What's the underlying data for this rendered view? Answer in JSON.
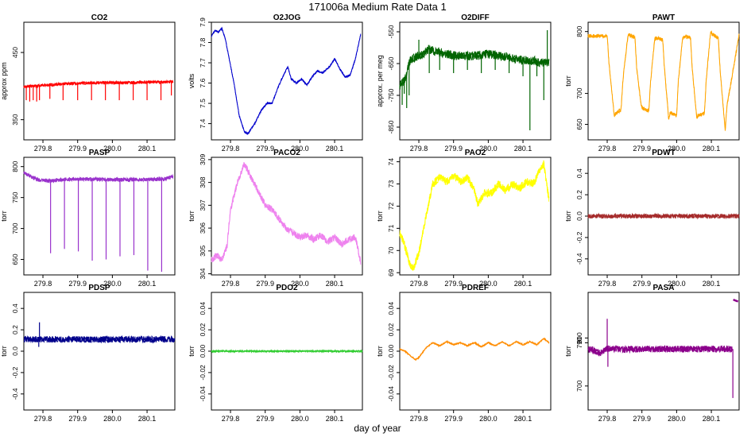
{
  "figure": {
    "title": "171006a   Medium Rate Data 1",
    "xlabel": "day of year"
  },
  "chart_data": [
    {
      "type": "line",
      "title": "CO2",
      "ylabel": "approx ppm",
      "color": "#ff0000",
      "xlim": [
        279.745,
        280.18
      ],
      "ylim": [
        320,
        495
      ],
      "xticks": [
        "279.8",
        "279.9",
        "280.0",
        "280.1"
      ],
      "yticks": [
        350,
        450
      ],
      "x": [
        279.745,
        279.8,
        279.85,
        279.9,
        279.95,
        280.0,
        280.05,
        280.1,
        280.15,
        280.175
      ],
      "y": [
        399,
        401,
        403,
        404,
        405,
        405,
        405,
        406,
        406,
        407
      ],
      "noise": 2,
      "spikes": [
        {
          "x": 279.752,
          "y": 379
        },
        {
          "x": 279.762,
          "y": 377
        },
        {
          "x": 279.772,
          "y": 379
        },
        {
          "x": 279.782,
          "y": 377
        },
        {
          "x": 279.79,
          "y": 379
        },
        {
          "x": 279.82,
          "y": 381
        },
        {
          "x": 279.858,
          "y": 379
        },
        {
          "x": 279.9,
          "y": 379
        },
        {
          "x": 279.94,
          "y": 379
        },
        {
          "x": 279.98,
          "y": 379
        },
        {
          "x": 280.02,
          "y": 379
        },
        {
          "x": 280.06,
          "y": 379
        },
        {
          "x": 280.1,
          "y": 379
        },
        {
          "x": 280.14,
          "y": 379
        },
        {
          "x": 280.17,
          "y": 386
        }
      ]
    },
    {
      "type": "line",
      "title": "O2JOG",
      "ylabel": "volts",
      "color": "#0000cd",
      "xlim": [
        279.745,
        280.18
      ],
      "ylim": [
        7.32,
        7.9
      ],
      "xticks": [
        "279.8",
        "279.9",
        "280.0",
        "280.1"
      ],
      "yticks": [
        7.4,
        7.5,
        7.6,
        7.7,
        7.8,
        7.9
      ],
      "x": [
        279.745,
        279.755,
        279.765,
        279.775,
        279.785,
        279.795,
        279.81,
        279.825,
        279.84,
        279.85,
        279.87,
        279.89,
        279.905,
        279.92,
        279.935,
        279.95,
        279.965,
        279.975,
        279.99,
        280.005,
        280.02,
        280.035,
        280.05,
        280.065,
        280.085,
        280.1,
        280.115,
        280.13,
        280.145,
        280.16,
        280.175
      ],
      "y": [
        7.83,
        7.86,
        7.85,
        7.87,
        7.82,
        7.73,
        7.6,
        7.44,
        7.36,
        7.35,
        7.4,
        7.47,
        7.5,
        7.5,
        7.57,
        7.63,
        7.68,
        7.62,
        7.6,
        7.62,
        7.59,
        7.63,
        7.66,
        7.65,
        7.68,
        7.72,
        7.67,
        7.63,
        7.64,
        7.72,
        7.84
      ],
      "noise": 0.004
    },
    {
      "type": "line",
      "title": "O2DIFF",
      "ylabel": "approx. per meg",
      "color": "#006400",
      "xlim": [
        279.745,
        280.18
      ],
      "ylim": [
        -890,
        -520
      ],
      "xticks": [
        "279.8",
        "279.9",
        "280.0",
        "280.1"
      ],
      "yticks": [
        -550,
        -650,
        -750,
        -850
      ],
      "x": [
        279.745,
        279.76,
        279.775,
        279.79,
        279.81,
        279.83,
        279.85,
        279.9,
        279.95,
        280.0,
        280.05,
        280.1,
        280.13,
        280.15,
        280.175
      ],
      "y": [
        -720,
        -700,
        -640,
        -630,
        -620,
        -605,
        -612,
        -625,
        -627,
        -620,
        -628,
        -640,
        -640,
        -648,
        -645
      ],
      "noise": 14,
      "spikes": [
        {
          "x": 279.752,
          "y": -780
        },
        {
          "x": 279.758,
          "y": -745
        },
        {
          "x": 279.765,
          "y": -790
        },
        {
          "x": 279.772,
          "y": -750
        },
        {
          "x": 279.8,
          "y": -575
        },
        {
          "x": 279.83,
          "y": -680
        },
        {
          "x": 279.86,
          "y": -670
        },
        {
          "x": 279.9,
          "y": -680
        },
        {
          "x": 279.94,
          "y": -670
        },
        {
          "x": 279.98,
          "y": -680
        },
        {
          "x": 280.02,
          "y": -670
        },
        {
          "x": 280.06,
          "y": -680
        },
        {
          "x": 280.1,
          "y": -690
        },
        {
          "x": 280.12,
          "y": -860
        },
        {
          "x": 280.14,
          "y": -690
        },
        {
          "x": 280.16,
          "y": -765
        },
        {
          "x": 280.17,
          "y": -545
        }
      ]
    },
    {
      "type": "line",
      "title": "PAWT",
      "ylabel": "torr",
      "color": "#ffa500",
      "xlim": [
        279.745,
        280.18
      ],
      "ylim": [
        625,
        815
      ],
      "xticks": [
        "279.8",
        "279.9",
        "280.0",
        "280.1"
      ],
      "yticks": [
        650,
        700,
        800
      ],
      "x": [
        279.745,
        279.8,
        279.805,
        279.82,
        279.825,
        279.84,
        279.845,
        279.858,
        279.862,
        279.88,
        279.885,
        279.898,
        279.902,
        279.92,
        279.925,
        279.937,
        279.942,
        279.96,
        279.965,
        279.977,
        279.982,
        280.0,
        280.005,
        280.017,
        280.022,
        280.04,
        280.045,
        280.058,
        280.062,
        280.08,
        280.085,
        280.098,
        280.102,
        280.12,
        280.125,
        280.14,
        280.145,
        280.18
      ],
      "y": [
        793,
        793,
        750,
        665,
        668,
        674,
        720,
        786,
        795,
        790,
        740,
        680,
        676,
        672,
        720,
        788,
        790,
        786,
        740,
        660,
        668,
        664,
        720,
        788,
        792,
        790,
        740,
        660,
        664,
        668,
        720,
        800,
        796,
        790,
        740,
        640,
        680,
        794
      ],
      "noise": 3
    },
    {
      "type": "line",
      "title": "PASP",
      "ylabel": "torr",
      "color": "#9932cc",
      "xlim": [
        279.745,
        280.18
      ],
      "ylim": [
        625,
        815
      ],
      "xticks": [
        "279.8",
        "279.9",
        "280.0",
        "280.1"
      ],
      "yticks": [
        650,
        700,
        750,
        800
      ],
      "x": [
        279.745,
        279.76,
        279.77,
        279.79,
        279.82,
        279.86,
        279.9,
        280.0,
        280.1,
        280.15,
        280.175
      ],
      "y": [
        790,
        786,
        782,
        778,
        777,
        779,
        780,
        779,
        779,
        780,
        784
      ],
      "noise": 3,
      "spikes": [
        {
          "x": 279.822,
          "y": 660
        },
        {
          "x": 279.862,
          "y": 667
        },
        {
          "x": 279.902,
          "y": 663
        },
        {
          "x": 279.942,
          "y": 648
        },
        {
          "x": 279.982,
          "y": 650
        },
        {
          "x": 280.022,
          "y": 655
        },
        {
          "x": 280.062,
          "y": 657
        },
        {
          "x": 280.102,
          "y": 632
        },
        {
          "x": 280.142,
          "y": 630
        }
      ]
    },
    {
      "type": "line",
      "title": "PACO2",
      "ylabel": "torr",
      "color": "#ee82ee",
      "xlim": [
        279.745,
        280.18
      ],
      "ylim": [
        303.95,
        309.1
      ],
      "xticks": [
        "279.8",
        "279.9",
        "280.0",
        "280.1"
      ],
      "yticks": [
        304,
        305,
        306,
        307,
        308,
        309
      ],
      "x": [
        279.745,
        279.76,
        279.775,
        279.79,
        279.8,
        279.82,
        279.84,
        279.86,
        279.88,
        279.9,
        279.92,
        279.94,
        279.96,
        279.98,
        280.0,
        280.02,
        280.04,
        280.06,
        280.08,
        280.1,
        280.12,
        280.14,
        280.16,
        280.175
      ],
      "y": [
        304.6,
        304.8,
        304.6,
        305.2,
        306.8,
        308.0,
        308.8,
        308.2,
        307.6,
        307.0,
        306.8,
        306.4,
        306.0,
        305.8,
        305.6,
        305.7,
        305.5,
        305.7,
        305.4,
        305.6,
        305.3,
        305.5,
        305.6,
        304.5
      ],
      "noise": 0.15
    },
    {
      "type": "line",
      "title": "PAO2",
      "ylabel": "torr",
      "color": "#ffff00",
      "xlim": [
        279.745,
        280.18
      ],
      "ylim": [
        68.9,
        74.2
      ],
      "xticks": [
        "279.8",
        "279.9",
        "280.0",
        "280.1"
      ],
      "yticks": [
        69,
        70,
        71,
        72,
        73,
        74
      ],
      "x": [
        279.745,
        279.76,
        279.775,
        279.785,
        279.8,
        279.82,
        279.84,
        279.86,
        279.88,
        279.9,
        279.92,
        279.94,
        279.96,
        279.97,
        279.99,
        280.01,
        280.03,
        280.05,
        280.07,
        280.09,
        280.11,
        280.13,
        280.15,
        280.16,
        280.175
      ],
      "y": [
        70.8,
        70.2,
        69.3,
        69.2,
        69.9,
        71.5,
        73.0,
        73.3,
        73.1,
        73.4,
        73.1,
        73.3,
        72.7,
        72.1,
        72.6,
        72.6,
        73.0,
        72.7,
        73.0,
        72.8,
        73.1,
        73.0,
        73.7,
        73.9,
        72.3
      ],
      "noise": 0.18
    },
    {
      "type": "line",
      "title": "PDWT",
      "ylabel": "torr",
      "color": "#a52a2a",
      "xlim": [
        279.745,
        280.18
      ],
      "ylim": [
        -0.55,
        0.55
      ],
      "xticks": [
        "279.8",
        "279.9",
        "280.0",
        "280.1"
      ],
      "yticks": [
        -0.4,
        -0.2,
        0.0,
        0.2,
        0.4
      ],
      "x": [
        279.745,
        280.18
      ],
      "y": [
        0.0,
        0.0
      ],
      "noise": 0.02
    },
    {
      "type": "line",
      "title": "PDSP",
      "ylabel": "torr",
      "color": "#00008b",
      "xlim": [
        279.745,
        280.18
      ],
      "ylim": [
        -0.55,
        0.55
      ],
      "xticks": [
        "279.8",
        "279.9",
        "280.0",
        "280.1"
      ],
      "yticks": [
        -0.4,
        -0.2,
        0.0,
        0.2,
        0.4
      ],
      "x": [
        279.745,
        280.18
      ],
      "y": [
        0.11,
        0.11
      ],
      "noise": 0.03,
      "spikes": [
        {
          "x": 279.79,
          "y": 0.27
        },
        {
          "x": 279.788,
          "y": 0.04
        }
      ]
    },
    {
      "type": "line",
      "title": "PDO2",
      "ylabel": "torr",
      "color": "#32cd32",
      "xlim": [
        279.745,
        280.18
      ],
      "ylim": [
        -0.055,
        0.055
      ],
      "xticks": [
        "279.8",
        "279.9",
        "280.0",
        "280.1"
      ],
      "yticks": [
        -0.04,
        -0.02,
        0.0,
        0.02,
        0.04
      ],
      "x": [
        279.745,
        280.18
      ],
      "y": [
        0.0,
        0.0
      ],
      "noise": 0.0008
    },
    {
      "type": "line",
      "title": "PDREF",
      "ylabel": "torr",
      "color": "#ff8c00",
      "xlim": [
        279.745,
        280.18
      ],
      "ylim": [
        -0.055,
        0.055
      ],
      "xticks": [
        "279.8",
        "279.9",
        "280.0",
        "280.1"
      ],
      "yticks": [
        -0.04,
        -0.02,
        0.0,
        0.02,
        0.04
      ],
      "x": [
        279.745,
        279.76,
        279.775,
        279.79,
        279.8,
        279.82,
        279.84,
        279.86,
        279.88,
        279.9,
        279.92,
        279.94,
        279.96,
        279.98,
        280.0,
        280.02,
        280.04,
        280.06,
        280.08,
        280.1,
        280.12,
        280.14,
        280.16,
        280.175
      ],
      "y": [
        0.002,
        0.0,
        -0.004,
        -0.008,
        -0.006,
        0.003,
        0.008,
        0.005,
        0.009,
        0.006,
        0.008,
        0.005,
        0.008,
        0.004,
        0.008,
        0.005,
        0.009,
        0.005,
        0.009,
        0.006,
        0.009,
        0.006,
        0.012,
        0.008
      ],
      "noise": 0.0006
    },
    {
      "type": "line",
      "title": "PASA",
      "ylabel": "torr",
      "color": "#8b008b",
      "xlim": [
        279.745,
        280.18
      ],
      "ylim": [
        650,
        895
      ],
      "xticks": [
        "279.8",
        "279.9",
        "280.0",
        "280.1"
      ],
      "yticks": [
        700,
        790,
        800
      ],
      "x": [
        279.745,
        279.76,
        279.78,
        279.8,
        279.85,
        279.9,
        280.0,
        280.1,
        280.16
      ],
      "y": [
        778,
        774,
        768,
        778,
        776,
        777,
        777,
        777,
        777
      ],
      "noise": 7,
      "spikes": [
        {
          "x": 279.8,
          "y": 840
        },
        {
          "x": 279.802,
          "y": 740
        },
        {
          "x": 280.162,
          "y": 675
        }
      ],
      "tail": [
        {
          "x": 280.163,
          "y": 880
        },
        {
          "x": 280.17,
          "y": 878
        },
        {
          "x": 280.177,
          "y": 876
        }
      ]
    }
  ]
}
